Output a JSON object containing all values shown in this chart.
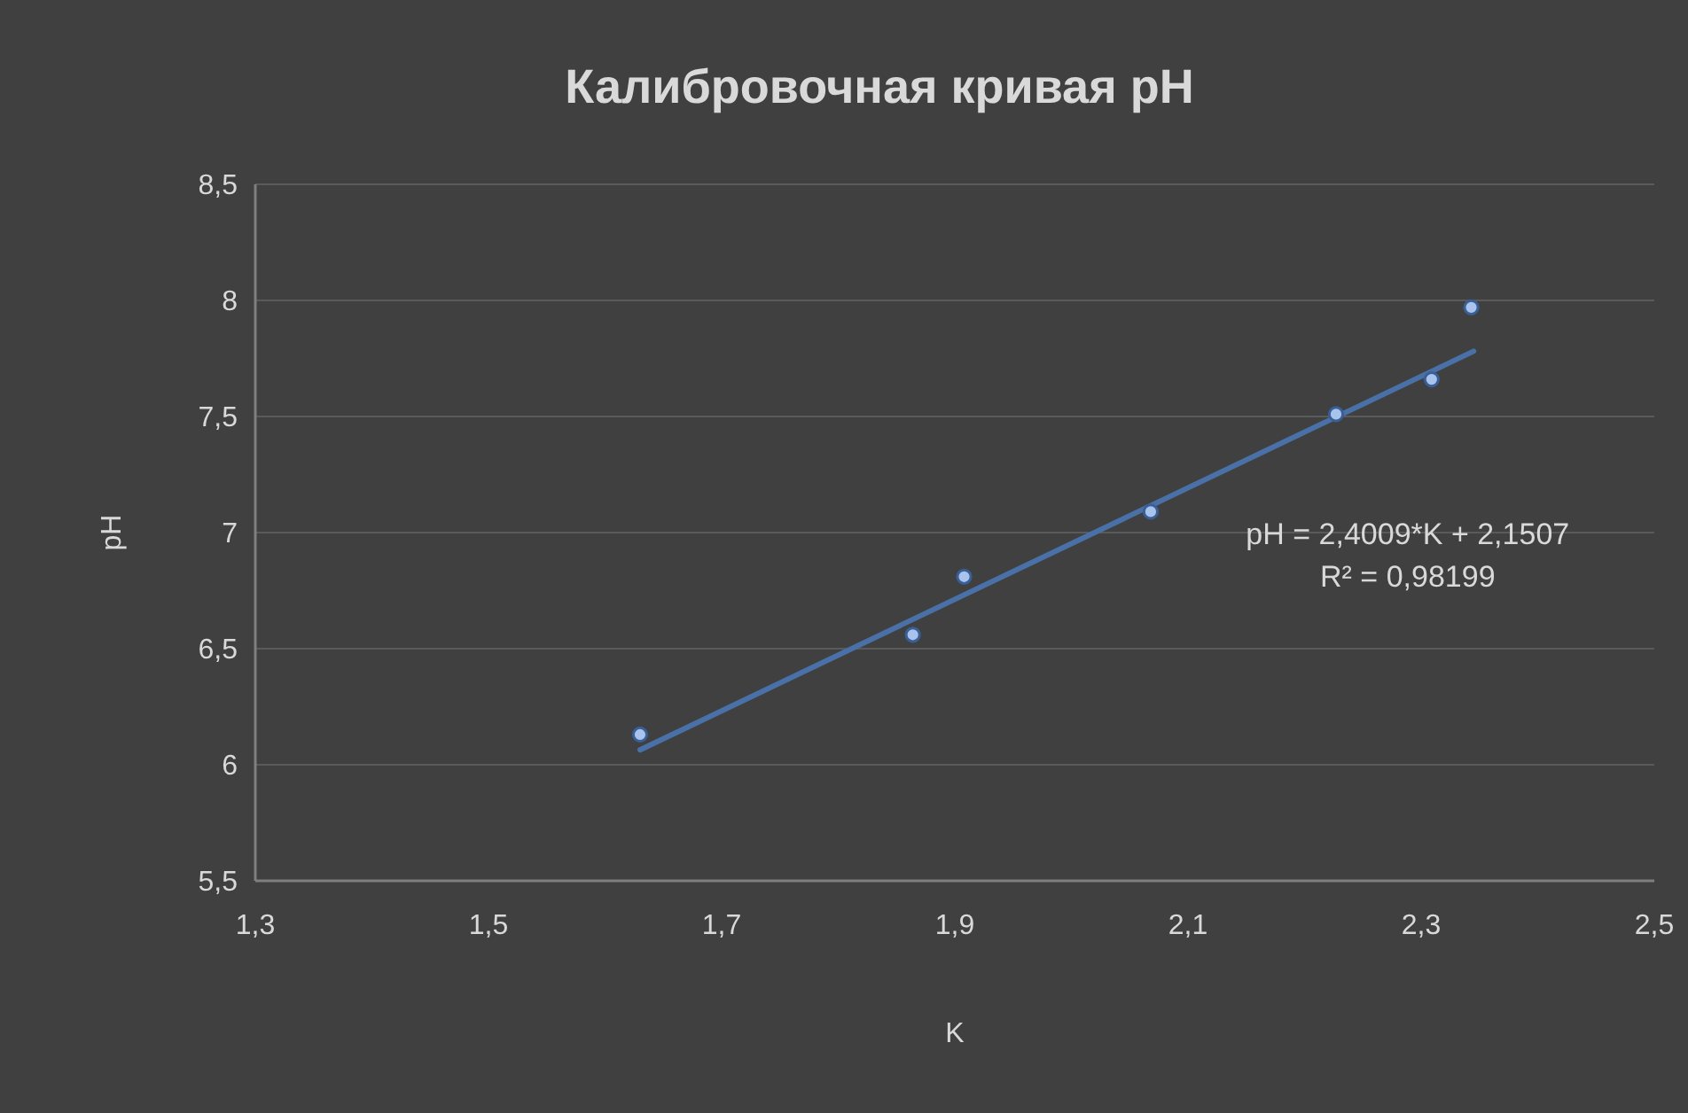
{
  "chart_data": {
    "type": "scatter",
    "title": "Калибровочная кривая pH",
    "xlabel": "K",
    "ylabel": "pH",
    "xlim": [
      1.3,
      2.5
    ],
    "xticks": [
      {
        "value": 1.3,
        "label": "1,3"
      },
      {
        "value": 1.5,
        "label": "1,5"
      },
      {
        "value": 1.7,
        "label": "1,7"
      },
      {
        "value": 1.9,
        "label": "1,9"
      },
      {
        "value": 2.1,
        "label": "2,1"
      },
      {
        "value": 2.3,
        "label": "2,3"
      },
      {
        "value": 2.5,
        "label": "2,5"
      }
    ],
    "ylim": [
      5.5,
      8.5
    ],
    "yticks": [
      {
        "value": 5.5,
        "label": "5,5"
      },
      6,
      {
        "value": 6.5,
        "label": "6,5"
      },
      7,
      {
        "value": 7.5,
        "label": "7,5"
      },
      8,
      {
        "value": 8.5,
        "label": "8,5"
      }
    ],
    "grid": "y",
    "marker": "circle",
    "series": [
      {
        "color": "#a9c4ec",
        "x": [
          1.63,
          1.864,
          1.908,
          2.068,
          2.227,
          2.309,
          2.343
        ],
        "values": [
          6.13,
          6.56,
          6.81,
          7.09,
          7.51,
          7.66,
          7.97
        ]
      },
      {
        "type": "line",
        "marker": "none",
        "color": "#4a70a8",
        "x": [
          1.63,
          2.345
        ],
        "values": [
          6.064,
          7.781
        ]
      }
    ],
    "annotations": [
      "pH = 2,4009*K + 2,1507",
      "R² = 0,98199"
    ]
  }
}
